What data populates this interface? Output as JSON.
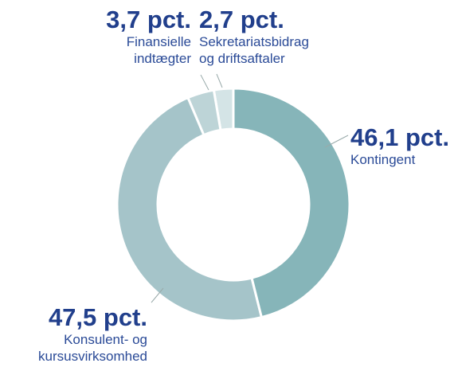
{
  "chart_data": {
    "type": "pie",
    "categories": [
      "Kontingent",
      "Konsulent- og\nkursusvirksomhed",
      "Finansielle\nindtægter",
      "Sekretariatsbidrag\nog driftsaftaler"
    ],
    "values": [
      46.1,
      47.5,
      3.7,
      2.7
    ],
    "value_labels": [
      "46,1 pct.",
      "47,5 pct.",
      "3,7 pct.",
      "2,7 pct."
    ],
    "colors": [
      "#86b5b9",
      "#a5c4c9",
      "#bdd4d7",
      "#d4e4e6"
    ]
  }
}
